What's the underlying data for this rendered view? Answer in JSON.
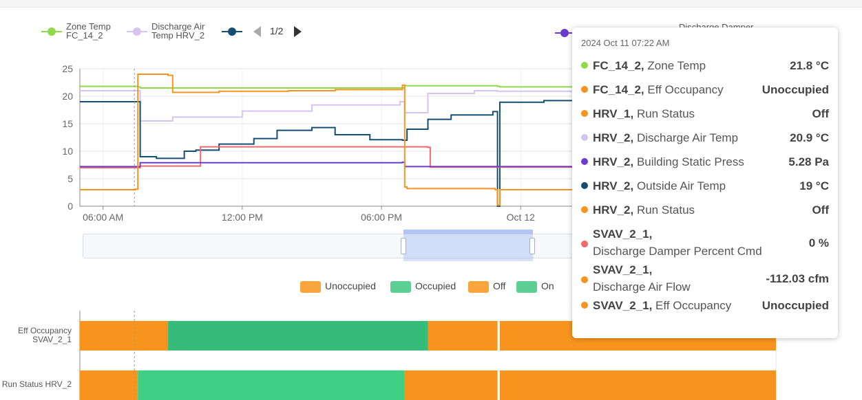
{
  "legend": {
    "items": [
      {
        "label": "Zone Temp\nFC_14_2",
        "color": "#8fd94a",
        "style": "line"
      },
      {
        "label": "Discharge Air\nTemp HRV_2",
        "color": "#d5c3f2",
        "style": "line"
      },
      {
        "label": "",
        "color": "#144f73",
        "style": "line"
      }
    ],
    "page_text": "1/2",
    "right_item": {
      "label": "Discharge Damper",
      "color": "#6c3ccf"
    }
  },
  "chart_data": [
    {
      "type": "line",
      "x_ticks": [
        "06:00 AM",
        "12:00 PM",
        "06:00 PM",
        "Oct 12"
      ],
      "ylim": [
        0,
        25
      ],
      "y_ticks": [
        "0",
        "5",
        "10",
        "15",
        "20",
        "25"
      ],
      "series": [
        {
          "name": "FC_14_2, Zone Temp",
          "color": "#8fd94a",
          "x": [
            5.0,
            7.5,
            7.6,
            19.0,
            19.1,
            23.0,
            23.1,
            35
          ],
          "y": [
            21.8,
            21.7,
            21.5,
            21.9,
            21.9,
            21.8,
            21.7,
            21.8
          ]
        },
        {
          "name": "HRV_2, Discharge Air Temp",
          "color": "#d5c3f2",
          "x": [
            5.0,
            7.3,
            7.6,
            9.0,
            12.0,
            15.0,
            18.8,
            19.0,
            20.0,
            22.0,
            23.0,
            35
          ],
          "y": [
            21,
            21,
            15.5,
            16.2,
            17.3,
            18.4,
            19,
            17,
            20.5,
            21,
            20.9,
            21.5
          ]
        },
        {
          "name": "HRV_2, Outside Air Temp",
          "color": "#144f73",
          "x": [
            5.0,
            7.4,
            7.6,
            8.3,
            9.5,
            10.0,
            11.0,
            12.5,
            13.5,
            15.0,
            16.0,
            17.5,
            18.9,
            19.1,
            20.0,
            21.0,
            22.8,
            23.0,
            23.1,
            25.0,
            35
          ],
          "y": [
            19,
            19,
            9,
            8.7,
            10.0,
            10.2,
            11.3,
            12.3,
            13.8,
            14.3,
            13.0,
            12.1,
            12.0,
            14.0,
            15.8,
            16.6,
            17.2,
            0,
            18.9,
            19.2,
            19.3
          ]
        },
        {
          "name": "SVAV_2_1, Discharge Damper Percent Cmd",
          "color": "#ef6a6a",
          "x": [
            5.0,
            7.5,
            7.6,
            9.5,
            10.2,
            19.0,
            20.0,
            20.1,
            35
          ],
          "y": [
            7,
            7,
            7.3,
            7.3,
            10.8,
            10.8,
            10.7,
            7.1,
            7.1
          ]
        },
        {
          "name": "HRV_2, Building Static Press",
          "color": "#6c3ccf",
          "x": [
            5.0,
            7.5,
            7.6,
            18.9,
            19.0,
            35
          ],
          "y": [
            7.2,
            7.2,
            7.9,
            8.0,
            7.2,
            7.0
          ]
        },
        {
          "name": "SVAV_2_1, Discharge Air Flow",
          "color": "#f7941d",
          "x": [
            5.0,
            7.4,
            7.5,
            8.8,
            9.0,
            11.0,
            14.0,
            16.0,
            18.9,
            19.0,
            19.1,
            22.9,
            23.0,
            23.1,
            35
          ],
          "y": [
            3.0,
            3.1,
            24.0,
            23.8,
            20.7,
            20.9,
            21.0,
            21.2,
            22.0,
            3.5,
            3.2,
            3.0,
            0.2,
            3.0,
            3.0
          ]
        }
      ]
    },
    {
      "type": "timeline",
      "legend": [
        {
          "label": "Unoccupied",
          "color": "#f9a53b"
        },
        {
          "label": "Occupied",
          "color": "#5ccf93"
        },
        {
          "label": "Off",
          "color": "#f9a53b"
        },
        {
          "label": "On",
          "color": "#5ccf93"
        }
      ],
      "rows": [
        {
          "label": "Eff Occupancy\nSVAV_2_1",
          "segments": [
            {
              "start": 5.0,
              "end": 8.8,
              "state": "Unoccupied",
              "color": "#f7941d"
            },
            {
              "start": 8.8,
              "end": 20.0,
              "state": "Occupied",
              "color": "#37bb79"
            },
            {
              "start": 20.0,
              "end": 23.0,
              "state": "Unoccupied",
              "color": "#f7941d"
            },
            {
              "start": 23.1,
              "end": 35,
              "state": "Unoccupied",
              "color": "#f7941d"
            }
          ]
        },
        {
          "label": "Run Status HRV_2",
          "segments": [
            {
              "start": 5.0,
              "end": 7.5,
              "state": "Off",
              "color": "#f7941d"
            },
            {
              "start": 7.5,
              "end": 19.0,
              "state": "On",
              "color": "#3ecf84"
            },
            {
              "start": 19.0,
              "end": 23.0,
              "state": "Off",
              "color": "#f7941d"
            },
            {
              "start": 23.1,
              "end": 35,
              "state": "Off",
              "color": "#f7941d"
            }
          ]
        }
      ]
    }
  ],
  "tooltip": {
    "time": "2024 Oct 11 07:22 AM",
    "rows": [
      {
        "bold": "FC_14_2,",
        "name": " Zone Temp",
        "value": "21.8 °C",
        "color": "#8fd94a"
      },
      {
        "bold": "FC_14_2,",
        "name": " Eff Occupancy",
        "value": "Unoccupied",
        "color": "#f7941d"
      },
      {
        "bold": "HRV_1,",
        "name": " Run Status",
        "value": "Off",
        "color": "#f7941d"
      },
      {
        "bold": "HRV_2,",
        "name": " Discharge Air Temp",
        "value": "20.9 °C",
        "color": "#d5c3f2"
      },
      {
        "bold": "HRV_2,",
        "name": " Building Static Press",
        "value": "5.28 Pa",
        "color": "#6c3ccf"
      },
      {
        "bold": "HRV_2,",
        "name": " Outside Air Temp",
        "value": "19 °C",
        "color": "#144f73"
      },
      {
        "bold": "HRV_2,",
        "name": " Run Status",
        "value": "Off",
        "color": "#f7941d"
      },
      {
        "bold": "SVAV_2_1,",
        "name": "Discharge Damper Percent Cmd",
        "value": "0 %",
        "color": "#ef6a6a",
        "twoline": true
      },
      {
        "bold": "SVAV_2_1,",
        "name": "Discharge Air Flow",
        "value": "-112.03 cfm",
        "color": "#f7941d",
        "twoline": true
      },
      {
        "bold": "SVAV_2_1,",
        "name": " Eff Occupancy",
        "value": "Unoccupied",
        "color": "#f7941d"
      }
    ]
  }
}
